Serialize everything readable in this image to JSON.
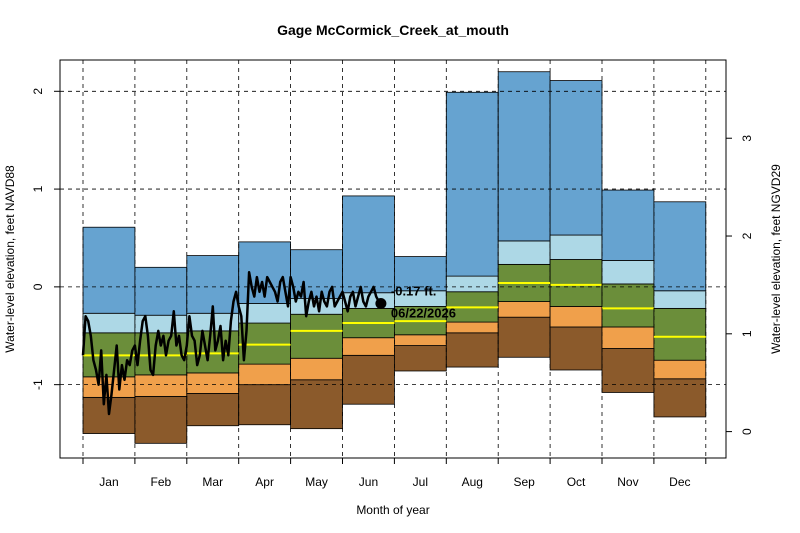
{
  "chart_data": {
    "type": "area",
    "title": "Gage McCormick_Creek_at_mouth",
    "xlabel": "Month of year",
    "ylabel_left": "Water-level elevation, feet NAVD88",
    "ylabel_right": "Water-level elevation, feet NGVD29",
    "ylim_left": [
      -1.75,
      2.32
    ],
    "ylim_right": [
      -0.27,
      3.8
    ],
    "yticks_left": [
      -1,
      0,
      1,
      2
    ],
    "yticks_right": [
      0,
      1,
      2,
      3
    ],
    "grid": true,
    "month_ticks": [
      {
        "label": "Jan",
        "pos": 1
      },
      {
        "label": "Feb",
        "pos": 2
      },
      {
        "label": "Mar",
        "pos": 3
      },
      {
        "label": "Apr",
        "pos": 4
      },
      {
        "label": "May",
        "pos": 5
      },
      {
        "label": "Jun",
        "pos": 6
      },
      {
        "label": "Jul",
        "pos": 7
      },
      {
        "label": "Aug",
        "pos": 8
      },
      {
        "label": "Sep",
        "pos": 9
      },
      {
        "label": "Oct",
        "pos": 10
      },
      {
        "label": "Nov",
        "pos": 11
      },
      {
        "label": "Dec",
        "pos": 12
      }
    ],
    "band_colors": [
      "#8b5a2b",
      "#f0a04b",
      "#6b8e3a",
      "#add8e6",
      "#66a3d0"
    ],
    "median_color": "#ffff00",
    "months": [
      {
        "name": "Jan",
        "min": -1.5,
        "p10": -1.13,
        "p25": -0.92,
        "median": -0.7,
        "p75": -0.47,
        "p90": -0.27,
        "max": 0.61
      },
      {
        "name": "Feb",
        "min": -1.6,
        "p10": -1.12,
        "p25": -0.9,
        "median": -0.7,
        "p75": -0.47,
        "p90": -0.29,
        "max": 0.2
      },
      {
        "name": "Mar",
        "min": -1.42,
        "p10": -1.09,
        "p25": -0.88,
        "median": -0.68,
        "p75": -0.45,
        "p90": -0.27,
        "max": 0.32
      },
      {
        "name": "Apr",
        "min": -1.41,
        "p10": -1.0,
        "p25": -0.79,
        "median": -0.59,
        "p75": -0.37,
        "p90": -0.17,
        "max": 0.46
      },
      {
        "name": "May",
        "min": -1.45,
        "p10": -0.95,
        "p25": -0.73,
        "median": -0.45,
        "p75": -0.28,
        "p90": -0.12,
        "max": 0.38
      },
      {
        "name": "Jun",
        "min": -1.2,
        "p10": -0.7,
        "p25": -0.52,
        "median": -0.37,
        "p75": -0.22,
        "p90": -0.06,
        "max": 0.93
      },
      {
        "name": "Jul",
        "min": -0.86,
        "p10": -0.6,
        "p25": -0.49,
        "median": -0.35,
        "p75": -0.2,
        "p90": -0.04,
        "max": 0.31
      },
      {
        "name": "Aug",
        "min": -0.82,
        "p10": -0.47,
        "p25": -0.36,
        "median": -0.21,
        "p75": -0.05,
        "p90": 0.11,
        "max": 1.99
      },
      {
        "name": "Sep",
        "min": -0.72,
        "p10": -0.31,
        "p25": -0.15,
        "median": 0.04,
        "p75": 0.23,
        "p90": 0.47,
        "max": 2.2
      },
      {
        "name": "Oct",
        "min": -0.85,
        "p10": -0.41,
        "p25": -0.2,
        "median": 0.02,
        "p75": 0.28,
        "p90": 0.53,
        "max": 2.11
      },
      {
        "name": "Nov",
        "min": -1.08,
        "p10": -0.63,
        "p25": -0.41,
        "median": -0.22,
        "p75": 0.03,
        "p90": 0.27,
        "max": 0.99
      },
      {
        "name": "Dec",
        "min": -1.33,
        "p10": -0.94,
        "p25": -0.75,
        "median": -0.51,
        "p75": -0.22,
        "p90": -0.04,
        "max": 0.87
      }
    ],
    "series": [
      {
        "x": [
          1.0,
          1.05,
          1.1,
          1.15,
          1.2,
          1.25,
          1.3,
          1.35,
          1.4,
          1.45,
          1.5,
          1.55,
          1.6,
          1.65,
          1.7,
          1.75,
          1.8,
          1.85,
          1.9,
          1.95,
          2.0,
          2.05,
          2.1,
          2.15,
          2.2,
          2.25,
          2.3,
          2.35,
          2.4,
          2.45,
          2.5,
          2.55,
          2.6,
          2.65,
          2.7,
          2.75,
          2.8,
          2.85,
          2.9,
          2.95,
          3.0,
          3.05,
          3.1,
          3.15,
          3.2,
          3.25,
          3.3,
          3.35,
          3.4,
          3.45,
          3.5,
          3.55,
          3.6,
          3.65,
          3.7,
          3.75,
          3.8,
          3.85,
          3.9,
          3.95,
          4.0,
          4.05,
          4.1,
          4.15,
          4.2,
          4.25,
          4.3,
          4.35,
          4.4,
          4.45,
          4.5,
          4.55,
          4.6,
          4.65,
          4.7,
          4.75,
          4.8,
          4.85,
          4.9,
          4.95,
          5.0,
          5.05,
          5.1,
          5.15,
          5.2,
          5.25,
          5.3,
          5.35,
          5.4,
          5.45,
          5.5,
          5.55,
          5.6,
          5.65,
          5.7,
          5.75,
          5.8,
          5.85,
          5.9,
          5.95,
          6.0,
          6.05,
          6.1,
          6.15,
          6.2,
          6.25,
          6.3,
          6.35,
          6.4,
          6.45,
          6.5,
          6.55,
          6.6,
          6.65,
          6.7,
          6.74
        ],
        "values": [
          -0.7,
          -0.3,
          -0.35,
          -0.5,
          -0.75,
          -0.85,
          -1.0,
          -0.65,
          -1.2,
          -0.9,
          -1.3,
          -1.1,
          -0.85,
          -0.6,
          -1.05,
          -0.8,
          -0.95,
          -0.75,
          -0.8,
          -0.65,
          -0.6,
          -0.8,
          -0.55,
          -0.35,
          -0.3,
          -0.5,
          -0.85,
          -0.9,
          -0.6,
          -0.45,
          -0.6,
          -0.5,
          -0.7,
          -0.55,
          -0.5,
          -0.25,
          -0.6,
          -0.5,
          -0.7,
          -0.75,
          -0.6,
          -0.3,
          -0.5,
          -0.55,
          -0.8,
          -0.7,
          -0.45,
          -0.6,
          -0.75,
          -0.5,
          -0.2,
          -0.65,
          -0.55,
          -0.4,
          -0.75,
          -0.55,
          -0.7,
          -0.35,
          -0.15,
          -0.05,
          -0.2,
          -0.3,
          -0.75,
          -0.45,
          0.15,
          0.0,
          -0.1,
          0.1,
          -0.05,
          0.05,
          -0.1,
          0.1,
          0.05,
          0.0,
          -0.05,
          -0.15,
          0.05,
          0.1,
          -0.05,
          -0.2,
          0.1,
          0.0,
          -0.15,
          -0.05,
          -0.1,
          0.05,
          -0.3,
          -0.15,
          -0.05,
          -0.2,
          -0.1,
          -0.25,
          -0.05,
          -0.15,
          -0.2,
          -0.05,
          0.0,
          -0.2,
          -0.15,
          -0.1,
          -0.05,
          -0.15,
          -0.25,
          -0.1,
          -0.05,
          -0.2,
          -0.1,
          0.0,
          -0.15,
          -0.2,
          -0.1,
          -0.05,
          0.0,
          -0.1,
          -0.15,
          -0.17
        ]
      }
    ],
    "current_point": {
      "x": 6.74,
      "y": -0.17,
      "label_value": "-0.17 ft.",
      "label_date": "06/22/2026"
    }
  }
}
